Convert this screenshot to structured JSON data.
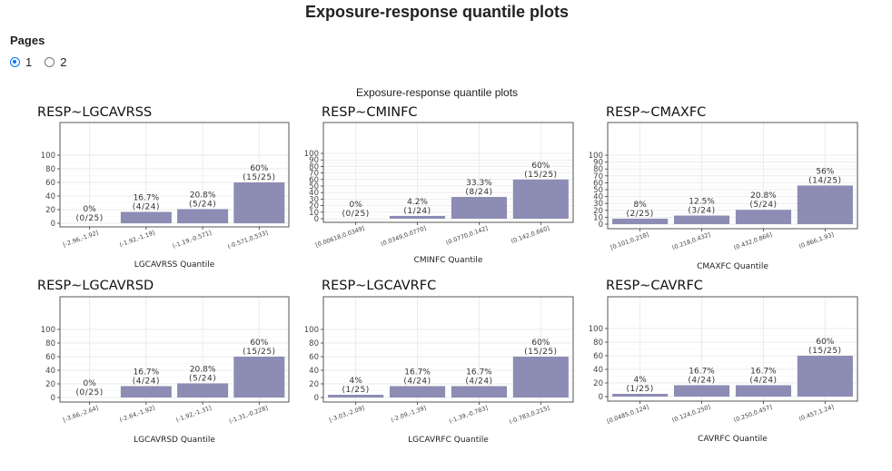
{
  "header": {
    "title": "Exposure-response quantile plots"
  },
  "pages": {
    "label": "Pages",
    "options": [
      {
        "label": "1",
        "checked": true
      },
      {
        "label": "2",
        "checked": false
      }
    ]
  },
  "figure_title": "Exposure-response quantile plots",
  "colors": {
    "bar": "#8c8cb4",
    "panel_border": "#555555",
    "grid": "#ebebeb",
    "radio_accent": "#0075ff"
  },
  "chart_data": [
    {
      "type": "bar",
      "title": "RESP~LGCAVRSS",
      "xlabel": "LGCAVRSS Quantile",
      "ylabel": "",
      "ylim": [
        0,
        100
      ],
      "yticks": [
        0,
        20,
        40,
        60,
        80,
        100
      ],
      "categories": [
        "[-2.96,-1.92]",
        "(-1.92,-1.19]",
        "(-1.19,-0.571]",
        "(-0.571,0.533]"
      ],
      "values": [
        0,
        16.7,
        20.8,
        60
      ],
      "labels": [
        "0%",
        "16.7%",
        "20.8%",
        "60%"
      ],
      "counts": [
        "(0/25)",
        "(4/24)",
        "(5/24)",
        "(15/25)"
      ]
    },
    {
      "type": "bar",
      "title": "RESP~CMINFC",
      "xlabel": "CMINFC Quantile",
      "ylabel": "",
      "ylim": [
        0,
        100
      ],
      "yticks": [
        0,
        10,
        20,
        30,
        40,
        50,
        60,
        70,
        80,
        90,
        100
      ],
      "categories": [
        "[0.00618,0.0349]",
        "(0.0349,0.0770]",
        "(0.0770,0.142]",
        "(0.142,0.660]"
      ],
      "values": [
        0,
        4.2,
        33.3,
        60
      ],
      "labels": [
        "0%",
        "4.2%",
        "33.3%",
        "60%"
      ],
      "counts": [
        "(0/25)",
        "(1/24)",
        "(8/24)",
        "(15/25)"
      ]
    },
    {
      "type": "bar",
      "title": "RESP~CMAXFC",
      "xlabel": "CMAXFC Quantile",
      "ylabel": "",
      "ylim": [
        0,
        100
      ],
      "yticks": [
        0,
        10,
        20,
        30,
        40,
        50,
        60,
        70,
        80,
        90,
        100
      ],
      "categories": [
        "[0.101,0.218]",
        "(0.218,0.432]",
        "(0.432,0.866]",
        "(0.866,1.93]"
      ],
      "values": [
        8,
        12.5,
        20.8,
        56
      ],
      "labels": [
        "8%",
        "12.5%",
        "20.8%",
        "56%"
      ],
      "counts": [
        "(2/25)",
        "(3/24)",
        "(5/24)",
        "(14/25)"
      ]
    },
    {
      "type": "bar",
      "title": "RESP~LGCAVRSD",
      "xlabel": "LGCAVRSD Quantile",
      "ylabel": "",
      "ylim": [
        0,
        100
      ],
      "yticks": [
        0,
        20,
        40,
        60,
        80,
        100
      ],
      "categories": [
        "[-3.66,-2.64]",
        "(-2.64,-1.92]",
        "(-1.92,-1.31]",
        "(-1.31,-0.228]"
      ],
      "values": [
        0,
        16.7,
        20.8,
        60
      ],
      "labels": [
        "0%",
        "16.7%",
        "20.8%",
        "60%"
      ],
      "counts": [
        "(0/25)",
        "(4/24)",
        "(5/24)",
        "(15/25)"
      ]
    },
    {
      "type": "bar",
      "title": "RESP~LGCAVRFC",
      "xlabel": "LGCAVRFC Quantile",
      "ylabel": "",
      "ylim": [
        0,
        100
      ],
      "yticks": [
        0,
        20,
        40,
        60,
        80,
        100
      ],
      "categories": [
        "[-3.03,-2.09]",
        "(-2.09,-1.39]",
        "(-1.39,-0.783]",
        "(-0.783,0.215]"
      ],
      "values": [
        4,
        16.7,
        16.7,
        60
      ],
      "labels": [
        "4%",
        "16.7%",
        "16.7%",
        "60%"
      ],
      "counts": [
        "(1/25)",
        "(4/24)",
        "(4/24)",
        "(15/25)"
      ]
    },
    {
      "type": "bar",
      "title": "RESP~CAVRFC",
      "xlabel": "CAVRFC Quantile",
      "ylabel": "",
      "ylim": [
        0,
        100
      ],
      "yticks": [
        0,
        20,
        40,
        60,
        80,
        100
      ],
      "categories": [
        "[0.0485,0.124]",
        "(0.124,0.250]",
        "(0.250,0.457]",
        "(0.457,1.24]"
      ],
      "values": [
        4,
        16.7,
        16.7,
        60
      ],
      "labels": [
        "4%",
        "16.7%",
        "16.7%",
        "60%"
      ],
      "counts": [
        "(1/25)",
        "(4/24)",
        "(4/24)",
        "(15/25)"
      ]
    }
  ]
}
